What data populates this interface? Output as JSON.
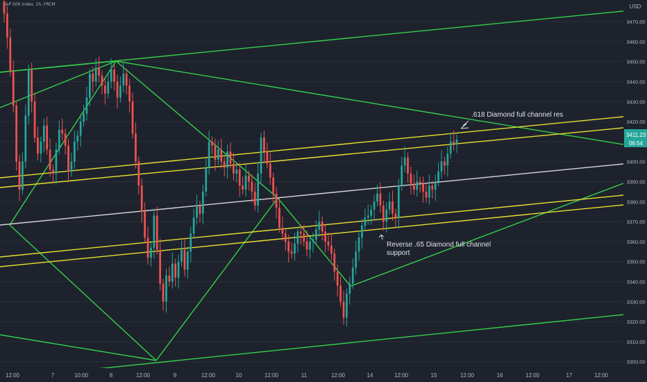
{
  "header": {
    "symbol": "S&P 500 index, 1h, FRCM"
  },
  "colors": {
    "background": "#1e222d",
    "up": "#26a69a",
    "down": "#ef5350",
    "green_lines": "#35d04a",
    "yellow_lines": "#e8e030",
    "white_line": "#d8d8d8",
    "axis_text": "#b2b5be",
    "price_badge": "#26a69a"
  },
  "chart_data": {
    "type": "candlestick",
    "title": "",
    "currency": "USD",
    "ylim": [
      3294,
      3478
    ],
    "y_ticks": [
      3300,
      3310,
      3320,
      3330,
      3340,
      3350,
      3360,
      3370,
      3380,
      3390,
      3400,
      3410,
      3420,
      3430,
      3440,
      3450,
      3460,
      3470
    ],
    "y_tick_labels": [
      "3300.00",
      "3310.00",
      "3320.00",
      "3330.00",
      "3340.00",
      "3350.00",
      "3360.00",
      "3370.00",
      "3380.00",
      "3390.00",
      "3400.00",
      "3410.00",
      "3420.00",
      "3430.00",
      "3440.00",
      "3450.00",
      "3460.00",
      "3470.00"
    ],
    "x_ticks": [
      "12:00",
      "7",
      "10:00",
      "8",
      "12:00",
      "9",
      "12:00",
      "10",
      "12:00",
      "11",
      "12:00",
      "14",
      "12:00",
      "15",
      "12:00",
      "16",
      "12:00",
      "17",
      "12:00"
    ],
    "bars_index_range": [
      0,
      193
    ],
    "last_price": "3411.23",
    "countdown": "06:54",
    "candles_close": [
      3474,
      3462,
      3445,
      3428,
      3400,
      3386,
      3400,
      3423,
      3446,
      3430,
      3412,
      3404,
      3410,
      3418,
      3406,
      3396,
      3394,
      3406,
      3416,
      3414,
      3408,
      3395,
      3400,
      3410,
      3413,
      3420,
      3424,
      3432,
      3444,
      3440,
      3447,
      3443,
      3438,
      3434,
      3440,
      3446,
      3440,
      3432,
      3438,
      3444,
      3438,
      3430,
      3414,
      3400,
      3388,
      3375,
      3362,
      3352,
      3357,
      3373,
      3356,
      3339,
      3330,
      3343,
      3340,
      3349,
      3342,
      3350,
      3356,
      3346,
      3355,
      3364,
      3372,
      3378,
      3374,
      3385,
      3397,
      3410,
      3408,
      3401,
      3406,
      3400,
      3397,
      3405,
      3399,
      3394,
      3396,
      3388,
      3386,
      3393,
      3390,
      3385,
      3378,
      3394,
      3412,
      3405,
      3399,
      3392,
      3384,
      3377,
      3367,
      3364,
      3360,
      3355,
      3354,
      3359,
      3365,
      3364,
      3360,
      3356,
      3360,
      3361,
      3366,
      3370,
      3365,
      3360,
      3358,
      3354,
      3345,
      3338,
      3330,
      3322,
      3334,
      3339,
      3347,
      3355,
      3362,
      3368,
      3372,
      3373,
      3376,
      3380,
      3384,
      3378,
      3370,
      3376,
      3380,
      3374,
      3372,
      3388,
      3398,
      3402,
      3394,
      3389,
      3386,
      3390,
      3389,
      3385,
      3382,
      3388,
      3386,
      3390,
      3395,
      3400,
      3398,
      3404,
      3410,
      3409,
      3411
    ],
    "annotations": [
      {
        "text": ".618 Diamond full channel res"
      },
      {
        "text": "Reverse .65 Diamond full channel support"
      }
    ]
  }
}
